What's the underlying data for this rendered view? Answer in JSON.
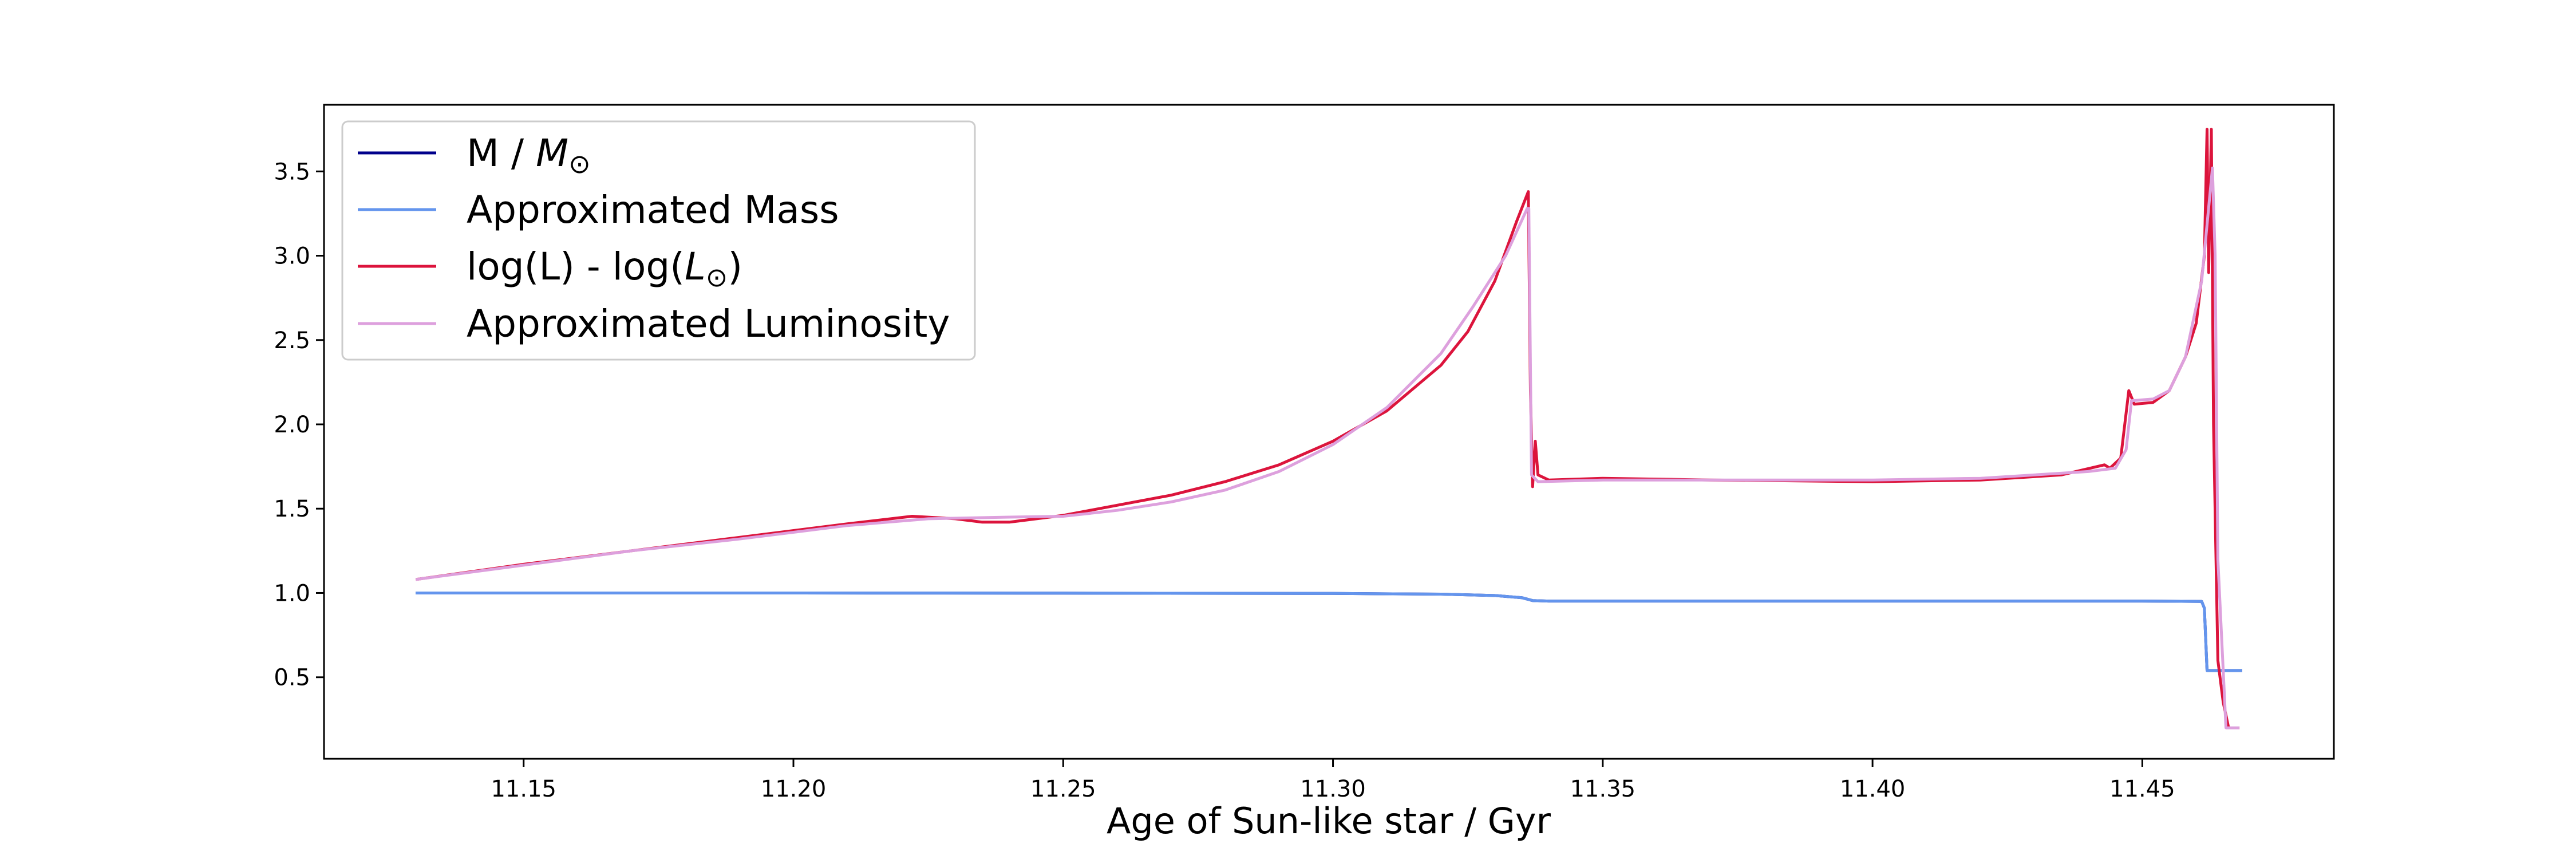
{
  "chart_data": {
    "type": "line",
    "title": "",
    "xlabel": "Age of Sun-like star / Gyr",
    "ylabel": "",
    "xlim": [
      11.113,
      11.4855
    ],
    "ylim": [
      0.0167,
      3.895
    ],
    "x_ticks": [
      11.15,
      11.2,
      11.25,
      11.3,
      11.35,
      11.4,
      11.45
    ],
    "y_ticks": [
      0.5,
      1.0,
      1.5,
      2.0,
      2.5,
      3.0,
      3.5
    ],
    "grid": false,
    "legend_position": "top-left",
    "series": [
      {
        "name_main": "M / ",
        "name_sym": "M",
        "name_sub": "⊙",
        "name_tail": "",
        "color": "#00008b",
        "points": [
          [
            11.13,
            1.0
          ],
          [
            11.2,
            1.0
          ],
          [
            11.25,
            0.999
          ],
          [
            11.3,
            0.997
          ],
          [
            11.32,
            0.993
          ],
          [
            11.33,
            0.985
          ],
          [
            11.335,
            0.972
          ],
          [
            11.337,
            0.955
          ],
          [
            11.34,
            0.952
          ],
          [
            11.4,
            0.952
          ],
          [
            11.45,
            0.952
          ],
          [
            11.461,
            0.95
          ],
          [
            11.4615,
            0.91
          ],
          [
            11.462,
            0.54
          ],
          [
            11.465,
            0.54
          ],
          [
            11.4685,
            0.54
          ]
        ]
      },
      {
        "name_main": "Approximated Mass",
        "color": "#6495ed",
        "points": [
          [
            11.13,
            1.0
          ],
          [
            11.2,
            1.0
          ],
          [
            11.25,
            0.999
          ],
          [
            11.3,
            0.997
          ],
          [
            11.32,
            0.993
          ],
          [
            11.33,
            0.985
          ],
          [
            11.335,
            0.972
          ],
          [
            11.337,
            0.955
          ],
          [
            11.34,
            0.952
          ],
          [
            11.4,
            0.952
          ],
          [
            11.45,
            0.952
          ],
          [
            11.461,
            0.95
          ],
          [
            11.4615,
            0.91
          ],
          [
            11.462,
            0.54
          ],
          [
            11.465,
            0.54
          ],
          [
            11.4685,
            0.54
          ]
        ]
      },
      {
        "name_main": "log(L) - log(",
        "name_sym": "L",
        "name_sub": "⊙",
        "name_tail": ")",
        "color": "#dc143c",
        "points": [
          [
            11.13,
            1.08
          ],
          [
            11.15,
            1.17
          ],
          [
            11.17,
            1.25
          ],
          [
            11.19,
            1.33
          ],
          [
            11.21,
            1.41
          ],
          [
            11.222,
            1.455
          ],
          [
            11.23,
            1.44
          ],
          [
            11.235,
            1.42
          ],
          [
            11.24,
            1.42
          ],
          [
            11.25,
            1.46
          ],
          [
            11.26,
            1.52
          ],
          [
            11.27,
            1.58
          ],
          [
            11.28,
            1.66
          ],
          [
            11.29,
            1.76
          ],
          [
            11.3,
            1.9
          ],
          [
            11.31,
            2.08
          ],
          [
            11.32,
            2.35
          ],
          [
            11.325,
            2.55
          ],
          [
            11.33,
            2.85
          ],
          [
            11.334,
            3.2
          ],
          [
            11.3362,
            3.38
          ],
          [
            11.3366,
            2.2
          ],
          [
            11.337,
            1.63
          ],
          [
            11.3375,
            1.9
          ],
          [
            11.338,
            1.7
          ],
          [
            11.34,
            1.67
          ],
          [
            11.35,
            1.68
          ],
          [
            11.37,
            1.67
          ],
          [
            11.4,
            1.66
          ],
          [
            11.42,
            1.67
          ],
          [
            11.435,
            1.7
          ],
          [
            11.443,
            1.76
          ],
          [
            11.444,
            1.74
          ],
          [
            11.446,
            1.8
          ],
          [
            11.4475,
            2.2
          ],
          [
            11.4485,
            2.12
          ],
          [
            11.452,
            2.13
          ],
          [
            11.455,
            2.2
          ],
          [
            11.458,
            2.4
          ],
          [
            11.46,
            2.6
          ],
          [
            11.4615,
            3.0
          ],
          [
            11.462,
            3.75
          ],
          [
            11.4623,
            2.9
          ],
          [
            11.4628,
            3.75
          ],
          [
            11.4632,
            2.0
          ],
          [
            11.464,
            0.6
          ],
          [
            11.465,
            0.35
          ],
          [
            11.466,
            0.2
          ],
          [
            11.468,
            0.2
          ]
        ]
      },
      {
        "name_main": "Approximated Luminosity",
        "color": "#dda0dd",
        "points": [
          [
            11.13,
            1.08
          ],
          [
            11.15,
            1.165
          ],
          [
            11.17,
            1.25
          ],
          [
            11.19,
            1.32
          ],
          [
            11.21,
            1.4
          ],
          [
            11.225,
            1.44
          ],
          [
            11.24,
            1.45
          ],
          [
            11.25,
            1.455
          ],
          [
            11.26,
            1.49
          ],
          [
            11.27,
            1.54
          ],
          [
            11.28,
            1.61
          ],
          [
            11.29,
            1.72
          ],
          [
            11.3,
            1.88
          ],
          [
            11.31,
            2.1
          ],
          [
            11.32,
            2.42
          ],
          [
            11.326,
            2.7
          ],
          [
            11.332,
            3.0
          ],
          [
            11.336,
            3.28
          ],
          [
            11.3363,
            3.28
          ],
          [
            11.3368,
            1.7
          ],
          [
            11.338,
            1.66
          ],
          [
            11.35,
            1.67
          ],
          [
            11.4,
            1.67
          ],
          [
            11.42,
            1.68
          ],
          [
            11.44,
            1.72
          ],
          [
            11.445,
            1.74
          ],
          [
            11.447,
            1.85
          ],
          [
            11.448,
            2.14
          ],
          [
            11.452,
            2.15
          ],
          [
            11.455,
            2.2
          ],
          [
            11.458,
            2.4
          ],
          [
            11.461,
            2.85
          ],
          [
            11.463,
            3.52
          ],
          [
            11.4635,
            3.0
          ],
          [
            11.464,
            1.2
          ],
          [
            11.4655,
            0.2
          ],
          [
            11.468,
            0.2
          ]
        ]
      }
    ]
  }
}
